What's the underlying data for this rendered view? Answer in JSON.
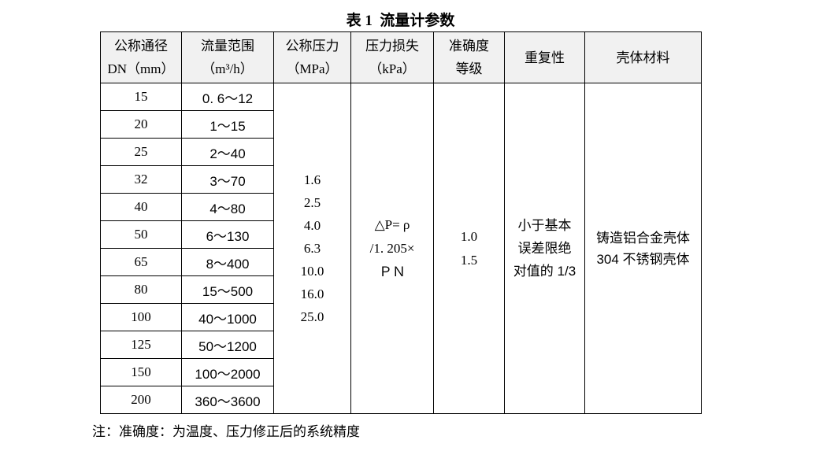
{
  "page": {
    "title": "表 1  流量计参数",
    "note": "注：准确度：为温度、压力修正后的系统精度"
  },
  "colors": {
    "page_bg": "#ffffff",
    "header_bg": "#f1f1f1",
    "border": "#000000",
    "text": "#000000"
  },
  "table": {
    "headers": {
      "dn": {
        "line1": "公称通径",
        "line2": "DN（mm）"
      },
      "flow": {
        "line1": "流量范围",
        "line2": "（m³/h）"
      },
      "pressure": {
        "line1": "公称压力",
        "line2": "（MPa）"
      },
      "loss": {
        "line1": "压力损失",
        "line2": "（kPa）"
      },
      "accuracy": {
        "line1": "准确度",
        "line2": "等级"
      },
      "repeatability": {
        "line1": "重复性"
      },
      "housing": {
        "line1": "壳体材料"
      }
    },
    "rows": [
      {
        "dn": "15",
        "flow": "0. 6～12"
      },
      {
        "dn": "20",
        "flow": "1～15"
      },
      {
        "dn": "25",
        "flow": "2～40"
      },
      {
        "dn": "32",
        "flow": "3～70"
      },
      {
        "dn": "40",
        "flow": "4～80"
      },
      {
        "dn": "50",
        "flow": "6～130"
      },
      {
        "dn": "65",
        "flow": "8～400"
      },
      {
        "dn": "80",
        "flow": "15～500"
      },
      {
        "dn": "100",
        "flow": "40～1000"
      },
      {
        "dn": "125",
        "flow": "50～1200"
      },
      {
        "dn": "150",
        "flow": "100～2000"
      },
      {
        "dn": "200",
        "flow": "360～3600"
      }
    ],
    "merged": {
      "pressure_values": [
        "1.6",
        "2.5",
        "4.0",
        "6.3",
        "10.0",
        "16.0",
        "25.0"
      ],
      "loss_lines": [
        "△P= ρ",
        "/1. 205×",
        "ＰＮ"
      ],
      "accuracy_values": [
        "1.0",
        "1.5"
      ],
      "repeatability_lines": [
        "小于基本",
        "误差限绝",
        "对值的 1/3"
      ],
      "housing_lines": [
        "铸造铝合金壳体",
        "304 不锈钢壳体"
      ]
    }
  }
}
